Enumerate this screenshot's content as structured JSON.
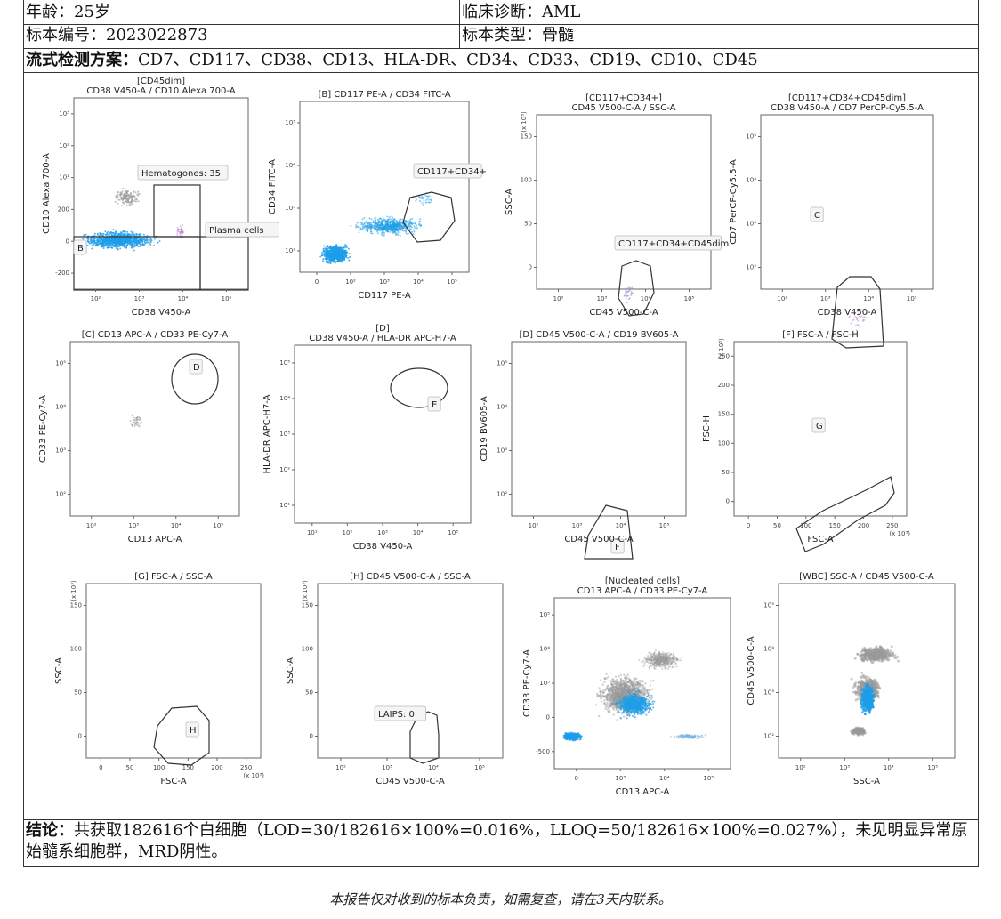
{
  "header": {
    "age_label": "年龄：25岁",
    "diagnosis_label": "临床诊断：AML",
    "specimen_id_label": "标本编号：2023022873",
    "specimen_type_label": "标本类型：骨髓",
    "panel_title": "流式检测方案：",
    "panel_markers": "CD7、CD117、CD38、CD13、HLA-DR、CD34、CD33、CD19、CD10、CD45"
  },
  "plots": [
    {
      "title1": "[CD45dim]",
      "title2": "CD38 V450-A / CD10 Alexa 700-A",
      "xlabel": "CD38 V450-A",
      "ylabel": "CD10 Alexa 700-A",
      "xticks": [
        "10²",
        "10³",
        "10⁴",
        "10⁵"
      ],
      "yticks": [
        "10³",
        "10²",
        "10¹",
        "200",
        "0",
        "-200"
      ],
      "gates": [
        "Hematogones: 35",
        "Plasma cells",
        "B"
      ]
    },
    {
      "title1": "[B] CD117 PE-A / CD34 FITC-A",
      "title2": "",
      "xlabel": "CD117 PE-A",
      "ylabel": "CD34 FITC-A",
      "xticks": [
        "0",
        "10²",
        "10³",
        "10⁴",
        "10⁵"
      ],
      "yticks": [
        "10⁵",
        "10⁴",
        "10³",
        "10²"
      ],
      "gates": [
        "CD117+CD34+"
      ]
    },
    {
      "title1": "[CD117+CD34+]",
      "title2": "CD45 V500-C-A / SSC-A",
      "xlabel": "CD45 V500-C-A",
      "ylabel": "SSC-A",
      "xticks": [
        "10²",
        "10³",
        "10⁴",
        "10⁵"
      ],
      "yticks": [
        "150",
        "100",
        "50",
        "0"
      ],
      "yunit": "(x 10³)",
      "gates": [
        "CD117+CD34+CD45dim"
      ]
    },
    {
      "title1": "[CD117+CD34+CD45dim]",
      "title2": "CD38 V450-A / CD7 PerCP-Cy5.5-A",
      "xlabel": "CD38 V450-A",
      "ylabel": "CD7 PerCP-Cy5.5-A",
      "xticks": [
        "10²",
        "10³",
        "10⁴",
        "10⁵"
      ],
      "yticks": [
        "10⁵",
        "10⁴",
        "10³",
        "10²"
      ],
      "gates": [
        "C"
      ]
    },
    {
      "title1": "[C] CD13 APC-A / CD33 PE-Cy7-A",
      "title2": "",
      "xlabel": "CD13 APC-A",
      "ylabel": "CD33 PE-Cy7-A",
      "xticks": [
        "10²",
        "10³",
        "10⁴",
        "10⁵"
      ],
      "yticks": [
        "10⁵",
        "10⁴",
        "10³",
        "10²"
      ],
      "gates": [
        "D"
      ]
    },
    {
      "title1": "[D]",
      "title2": "CD38 V450-A / HLA-DR APC-H7-A",
      "xlabel": "CD38 V450-A",
      "ylabel": "HLA-DR APC-H7-A",
      "xticks": [
        "10¹",
        "10²",
        "10³",
        "10⁴",
        "10⁵"
      ],
      "yticks": [
        "10⁵",
        "10⁴",
        "10³",
        "10²",
        "10¹"
      ],
      "gates": [
        "E"
      ]
    },
    {
      "title1": "[D] CD45 V500-C-A / CD19 BV605-A",
      "title2": "",
      "xlabel": "CD45 V500-C-A",
      "ylabel": "CD19 BV605-A",
      "xticks": [
        "10²",
        "10³",
        "10⁴",
        "10⁵"
      ],
      "yticks": [
        "10⁵",
        "10⁴",
        "10³",
        "10²"
      ],
      "gates": [
        "F"
      ]
    },
    {
      "title1": "[F] FSC-A / FSC-H",
      "title2": "",
      "xlabel": "FSC-A",
      "ylabel": "FSC-H",
      "xticks": [
        "0",
        "50",
        "100",
        "150",
        "200",
        "250"
      ],
      "yticks": [
        "250",
        "200",
        "150",
        "100",
        "50",
        "0"
      ],
      "xunit": "(x 10³)",
      "yunit": "(x 10³)",
      "gates": [
        "G"
      ]
    },
    {
      "title1": "[G] FSC-A / SSC-A",
      "title2": "",
      "xlabel": "FSC-A",
      "ylabel": "SSC-A",
      "xticks": [
        "0",
        "50",
        "100",
        "150",
        "200",
        "250"
      ],
      "yticks": [
        "150",
        "100",
        "50",
        "0"
      ],
      "xunit": "(x 10³)",
      "yunit": "(x 10³)",
      "gates": [
        "H"
      ]
    },
    {
      "title1": "[H] CD45 V500-C-A / SSC-A",
      "title2": "",
      "xlabel": "CD45 V500-C-A",
      "ylabel": "SSC-A",
      "xticks": [
        "10²",
        "10³",
        "10⁴",
        "10⁵"
      ],
      "yticks": [
        "150",
        "100",
        "50",
        "0"
      ],
      "yunit": "(x 10³)",
      "gates": [
        "LAIPS: 0"
      ]
    },
    {
      "title1": "[Nucleated cells]",
      "title2": "CD13 APC-A / CD33 PE-Cy7-A",
      "xlabel": "CD13 APC-A",
      "ylabel": "CD33 PE-Cy7-A",
      "xticks": [
        "0",
        "10³",
        "10⁴",
        "10⁵"
      ],
      "yticks": [
        "10⁵",
        "10⁴",
        "10³",
        "0",
        "-500"
      ],
      "gates": []
    },
    {
      "title1": "[WBC] SSC-A / CD45 V500-C-A",
      "title2": "",
      "xlabel": "SSC-A",
      "ylabel": "CD45 V500-C-A",
      "xticks": [
        "10²",
        "10³",
        "10⁴",
        "10⁵"
      ],
      "yticks": [
        "10⁵",
        "10⁴",
        "10³",
        "10²"
      ],
      "gates": []
    }
  ],
  "conclusion": {
    "label": "结论：",
    "text": "共获取182616个白细胞（LOD=30/182616×100%=0.016%，LLOQ=50/182616×100%=0.027%），未见明显异常原始髓系细胞群，MRD阴性。"
  },
  "footer": "本报告仅对收到的标本负责，如需复查，请在3天内联系。",
  "colors": {
    "population": "#1e9ee8",
    "background_events": "#9a9a9a",
    "gate": "#333333"
  }
}
